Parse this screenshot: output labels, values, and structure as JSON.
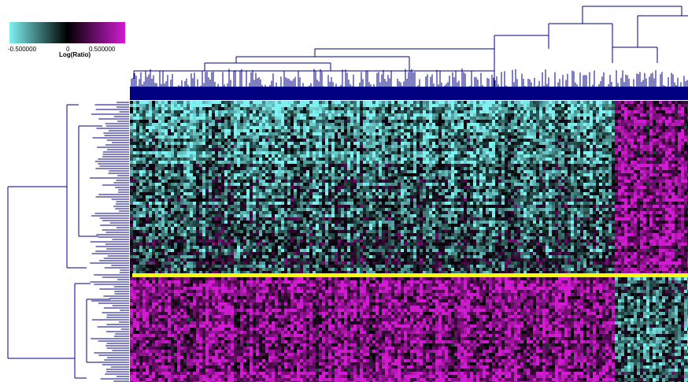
{
  "chart_data": {
    "type": "heatmap",
    "title": "",
    "colorscale": {
      "low_color": "#7ff1f1",
      "mid_color": "#000000",
      "high_color": "#d21bd2",
      "min": -0.5,
      "mid": 0,
      "max": 0.5,
      "tick_labels": [
        "-0.500000",
        "0",
        "0.500000"
      ],
      "label": "Log(Ratio)"
    },
    "column_dendrogram_color": "#000080",
    "row_dendrogram_color": "#000080",
    "separator_line_color": "#ffff00",
    "row_blocks": [
      {
        "block": "upper",
        "column_groups": [
          {
            "group": "left",
            "mean_log_ratio": -0.25
          },
          {
            "group": "right",
            "mean_log_ratio": 0.3
          }
        ]
      },
      {
        "block": "lower",
        "column_groups": [
          {
            "group": "left",
            "mean_log_ratio": 0.3
          },
          {
            "group": "right",
            "mean_log_ratio": -0.2
          }
        ]
      }
    ],
    "grid": false,
    "legend_placement": "top-left"
  }
}
